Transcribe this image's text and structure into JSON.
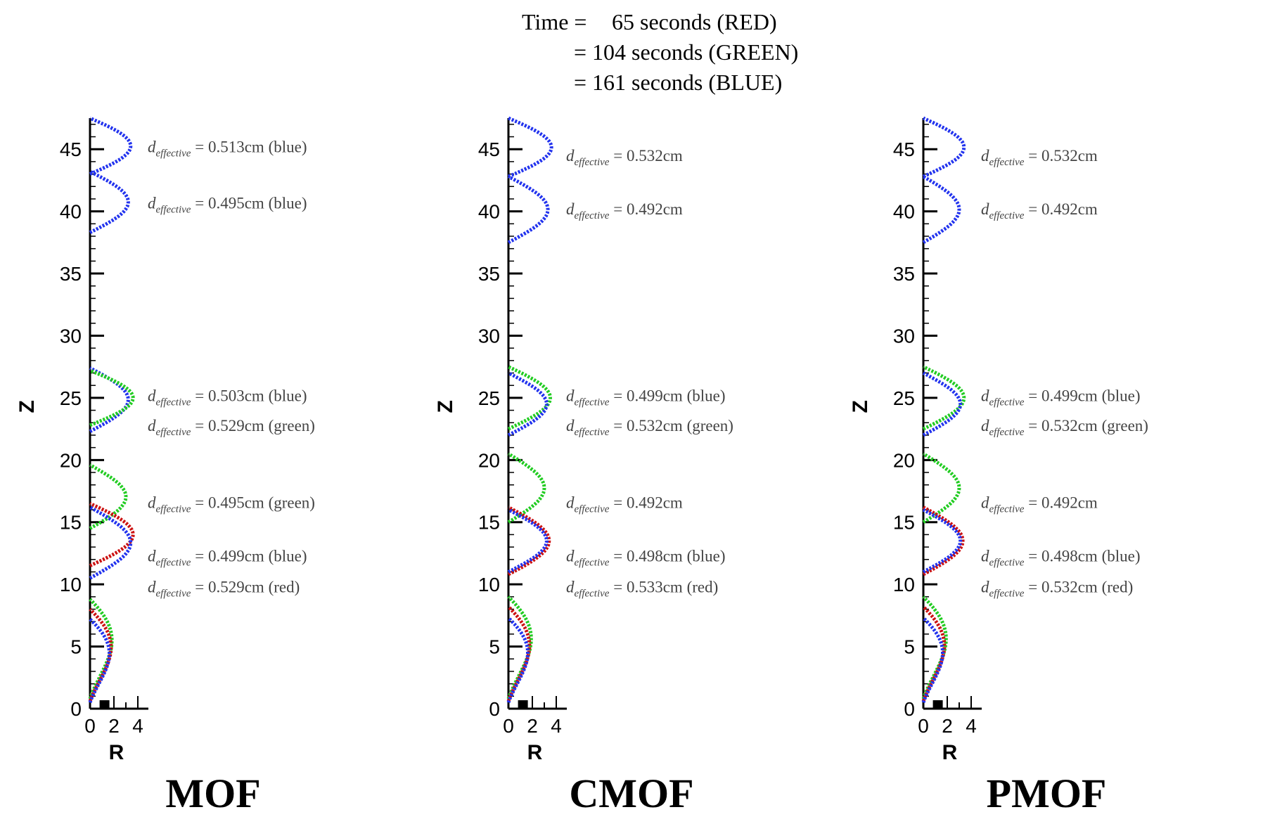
{
  "time_label": {
    "prefix": "Time =",
    "lines": [
      "65 seconds (RED)",
      "= 104 seconds (GREEN)",
      "= 161 seconds (BLUE)"
    ]
  },
  "colors": {
    "red": "#cc1111",
    "green": "#22cc22",
    "blue": "#2233ee"
  },
  "chart_data": [
    {
      "type": "scatter",
      "title": "MOF",
      "xlabel": "R",
      "ylabel": "Z",
      "xlim": [
        0,
        5
      ],
      "ylim": [
        0,
        47.5
      ],
      "x_ticks": [
        0,
        2,
        4
      ],
      "y_ticks": [
        0,
        5,
        10,
        15,
        20,
        25,
        30,
        35,
        40,
        45
      ],
      "series": [
        {
          "color": "blue",
          "outline": "bubble",
          "z_range": [
            43.0,
            47.5
          ],
          "r_max": 3.4
        },
        {
          "color": "blue",
          "outline": "bubble",
          "z_range": [
            38.3,
            43.2
          ],
          "r_max": 3.2
        },
        {
          "color": "blue",
          "outline": "bubble",
          "z_range": [
            22.3,
            27.4
          ],
          "r_max": 3.2
        },
        {
          "color": "green",
          "outline": "bubble",
          "z_range": [
            22.8,
            27.2
          ],
          "r_max": 3.6
        },
        {
          "color": "green",
          "outline": "bubble",
          "z_range": [
            14.5,
            19.6
          ],
          "r_max": 3.0
        },
        {
          "color": "red",
          "outline": "bubble",
          "z_range": [
            11.5,
            16.5
          ],
          "r_max": 3.6
        },
        {
          "color": "blue",
          "outline": "bubble",
          "z_range": [
            10.5,
            16.2
          ],
          "r_max": 3.4
        },
        {
          "color": "green",
          "outline": "neck",
          "z_range": [
            0.8,
            8.8
          ],
          "r_max": 2.6
        },
        {
          "color": "red",
          "outline": "neck",
          "z_range": [
            0.6,
            8.0
          ],
          "r_max": 2.5
        },
        {
          "color": "blue",
          "outline": "neck",
          "z_range": [
            0.5,
            7.2
          ],
          "r_max": 2.3
        }
      ],
      "annotations": [
        {
          "z": 45.2,
          "value": "0.513cm",
          "tag": "(blue)"
        },
        {
          "z": 40.7,
          "value": "0.495cm",
          "tag": "(blue)"
        },
        {
          "z": 25.2,
          "value": "0.503cm",
          "tag": "(blue)"
        },
        {
          "z": 22.8,
          "value": "0.529cm",
          "tag": "(green)"
        },
        {
          "z": 16.6,
          "value": "0.495cm",
          "tag": "(green)"
        },
        {
          "z": 12.3,
          "value": "0.499cm",
          "tag": "(blue)"
        },
        {
          "z": 9.8,
          "value": "0.529cm",
          "tag": "(red)"
        }
      ]
    },
    {
      "type": "scatter",
      "title": "CMOF",
      "xlabel": "R",
      "ylabel": "Z",
      "xlim": [
        0,
        5
      ],
      "ylim": [
        0,
        47.5
      ],
      "x_ticks": [
        0,
        2,
        4
      ],
      "y_ticks": [
        0,
        5,
        10,
        15,
        20,
        25,
        30,
        35,
        40,
        45
      ],
      "series": [
        {
          "color": "blue",
          "outline": "bubble",
          "z_range": [
            42.8,
            47.5
          ],
          "r_max": 3.6
        },
        {
          "color": "blue",
          "outline": "bubble",
          "z_range": [
            37.5,
            42.8
          ],
          "r_max": 3.3
        },
        {
          "color": "green",
          "outline": "bubble",
          "z_range": [
            22.5,
            27.5
          ],
          "r_max": 3.5
        },
        {
          "color": "blue",
          "outline": "bubble",
          "z_range": [
            22.0,
            27.0
          ],
          "r_max": 3.2
        },
        {
          "color": "green",
          "outline": "bubble",
          "z_range": [
            15.0,
            20.5
          ],
          "r_max": 3.0
        },
        {
          "color": "red",
          "outline": "bubble",
          "z_range": [
            10.8,
            16.2
          ],
          "r_max": 3.4
        },
        {
          "color": "blue",
          "outline": "bubble",
          "z_range": [
            11.0,
            16.0
          ],
          "r_max": 3.2
        },
        {
          "color": "green",
          "outline": "neck",
          "z_range": [
            0.8,
            9.0
          ],
          "r_max": 2.7
        },
        {
          "color": "red",
          "outline": "neck",
          "z_range": [
            0.6,
            8.2
          ],
          "r_max": 2.5
        },
        {
          "color": "blue",
          "outline": "neck",
          "z_range": [
            0.5,
            7.3
          ],
          "r_max": 2.3
        }
      ],
      "annotations": [
        {
          "z": 44.5,
          "value": "0.532cm",
          "tag": ""
        },
        {
          "z": 40.2,
          "value": "0.492cm",
          "tag": ""
        },
        {
          "z": 25.2,
          "value": "0.499cm",
          "tag": "(blue)"
        },
        {
          "z": 22.8,
          "value": "0.532cm",
          "tag": "(green)"
        },
        {
          "z": 16.6,
          "value": "0.492cm",
          "tag": ""
        },
        {
          "z": 12.3,
          "value": "0.498cm",
          "tag": "(blue)"
        },
        {
          "z": 9.8,
          "value": "0.533cm",
          "tag": "(red)"
        }
      ]
    },
    {
      "type": "scatter",
      "title": "PMOF",
      "xlabel": "R",
      "ylabel": "Z",
      "xlim": [
        0,
        5
      ],
      "ylim": [
        0,
        47.5
      ],
      "x_ticks": [
        0,
        2,
        4
      ],
      "y_ticks": [
        0,
        5,
        10,
        15,
        20,
        25,
        30,
        35,
        40,
        45
      ],
      "series": [
        {
          "color": "blue",
          "outline": "bubble",
          "z_range": [
            42.8,
            47.5
          ],
          "r_max": 3.4
        },
        {
          "color": "blue",
          "outline": "bubble",
          "z_range": [
            37.5,
            42.8
          ],
          "r_max": 3.0
        },
        {
          "color": "green",
          "outline": "bubble",
          "z_range": [
            22.5,
            27.5
          ],
          "r_max": 3.4
        },
        {
          "color": "blue",
          "outline": "bubble",
          "z_range": [
            22.0,
            27.0
          ],
          "r_max": 3.1
        },
        {
          "color": "green",
          "outline": "bubble",
          "z_range": [
            15.0,
            20.5
          ],
          "r_max": 3.0
        },
        {
          "color": "red",
          "outline": "bubble",
          "z_range": [
            10.8,
            16.2
          ],
          "r_max": 3.3
        },
        {
          "color": "blue",
          "outline": "bubble",
          "z_range": [
            11.0,
            16.0
          ],
          "r_max": 3.1
        },
        {
          "color": "green",
          "outline": "neck",
          "z_range": [
            0.8,
            9.0
          ],
          "r_max": 2.7
        },
        {
          "color": "red",
          "outline": "neck",
          "z_range": [
            0.6,
            8.2
          ],
          "r_max": 2.5
        },
        {
          "color": "blue",
          "outline": "neck",
          "z_range": [
            0.5,
            7.3
          ],
          "r_max": 2.3
        }
      ],
      "annotations": [
        {
          "z": 44.5,
          "value": "0.532cm",
          "tag": ""
        },
        {
          "z": 40.2,
          "value": "0.492cm",
          "tag": ""
        },
        {
          "z": 25.2,
          "value": "0.499cm",
          "tag": "(blue)"
        },
        {
          "z": 22.8,
          "value": "0.532cm",
          "tag": "(green)"
        },
        {
          "z": 16.6,
          "value": "0.492cm",
          "tag": ""
        },
        {
          "z": 12.3,
          "value": "0.498cm",
          "tag": "(blue)"
        },
        {
          "z": 9.8,
          "value": "0.532cm",
          "tag": "(red)"
        }
      ]
    }
  ]
}
